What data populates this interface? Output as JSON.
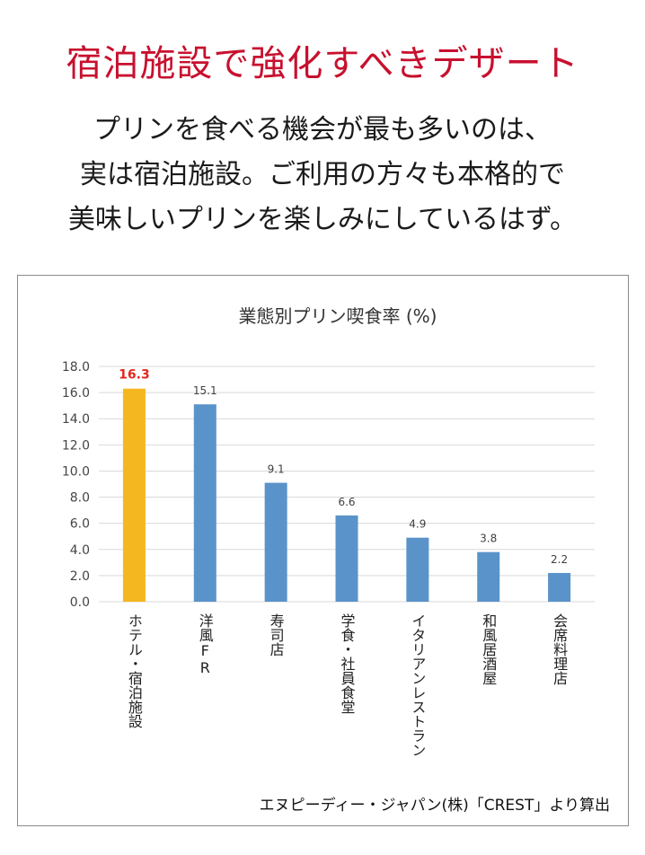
{
  "headline": "宿泊施設で強化すべきデザート",
  "intro_lines": [
    "プリンを食べる機会が最も多いのは、",
    "実は宿泊施設。ご利用の方々も本格的で",
    "美味しいプリンを楽しみにしているはず。"
  ],
  "source": "エヌピーディー・ジャパン(株)「CREST」より算出",
  "colors": {
    "headline": "#c8102e",
    "bar_default": "#5a93c9",
    "bar_highlight": "#f5b71f",
    "label_highlight": "#e0281e",
    "grid": "#d9d9d9"
  },
  "chart_data": {
    "type": "bar",
    "title": "業態別プリン喫食率 (%)",
    "categories": [
      "ホテル・宿泊施設",
      "洋風FR",
      "寿司店",
      "学食・社員食堂",
      "イタリアンレストラン",
      "和風居酒屋",
      "会席料理店"
    ],
    "values": [
      16.3,
      15.1,
      9.1,
      6.6,
      4.9,
      3.8,
      2.2
    ],
    "value_labels": [
      "16.3",
      "15.1",
      "9.1",
      "6.6",
      "4.9",
      "3.8",
      "2.2"
    ],
    "highlight_index": 0,
    "ylim": [
      0,
      18
    ],
    "yticks": [
      "0.0",
      "2.0",
      "4.0",
      "6.0",
      "8.0",
      "10.0",
      "12.0",
      "14.0",
      "16.0",
      "18.0"
    ],
    "grid": true,
    "xlabel": "",
    "ylabel": ""
  }
}
